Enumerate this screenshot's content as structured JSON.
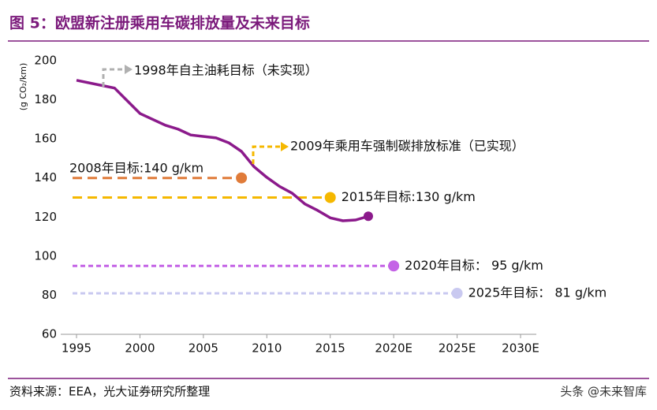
{
  "header": {
    "title": "图 5：欧盟新注册乘用车碳排放量及未来目标"
  },
  "chart_data": {
    "type": "line",
    "y_label": "(g CO₂/km)",
    "x": [
      1995,
      1998,
      2000,
      2002,
      2003,
      2004,
      2006,
      2007,
      2008,
      2009,
      2010,
      2011,
      2012,
      2013,
      2014,
      2015,
      2016,
      2017,
      2018
    ],
    "values": [
      190,
      186,
      173,
      167,
      165,
      162,
      160.5,
      158,
      153.6,
      145.7,
      140.3,
      135.7,
      132.2,
      126.7,
      123.4,
      119.6,
      118.1,
      118.5,
      120.4
    ],
    "color": "#8b1a8b",
    "xlim": [
      1995,
      2030
    ],
    "xticks": [
      1995,
      2000,
      2005,
      2010,
      2015,
      {
        "value": 2020,
        "label": "2020E"
      },
      {
        "value": 2025,
        "label": "2025E"
      },
      {
        "value": 2030,
        "label": "2030E"
      }
    ],
    "ylim": [
      60,
      200
    ],
    "yticks": [
      60,
      80,
      100,
      120,
      140,
      160,
      180,
      200
    ],
    "targets": [
      {
        "x": 2008,
        "value": 140,
        "label": "2008年目标:140 g/km",
        "color": "#e07b39"
      },
      {
        "x": 2015,
        "value": 130,
        "label": "2015年目标:130 g/km",
        "color": "#f5b800"
      },
      {
        "x": 2020,
        "value": 95,
        "label": "2020年目标： 95 g/km",
        "color": "#c463e6"
      },
      {
        "x": 2025,
        "value": 81,
        "label": "2025年目标： 81 g/km",
        "color": "#c9c9f0"
      }
    ],
    "annotations": [
      {
        "text": "1998年自主油耗目标（未实现）",
        "color": "#b0b0b0"
      },
      {
        "text": "2009年乘用车强制碳排放标准（已实现）",
        "color": "#f5b800"
      }
    ]
  },
  "footer": {
    "source": "资料来源：EEA，光大证券研究所整理",
    "watermark": "头条 @未来智库"
  }
}
